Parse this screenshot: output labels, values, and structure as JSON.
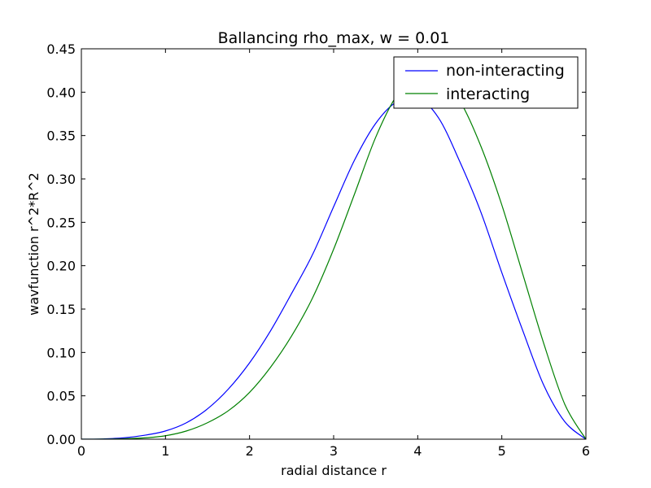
{
  "chart_data": {
    "type": "line",
    "title": "Ballancing rho_max, w = 0.01",
    "xlabel": "radial distance r",
    "ylabel": "wavfunction r^2*R^2",
    "xlim": [
      0,
      6
    ],
    "ylim": [
      0,
      0.45
    ],
    "xticks": [
      0,
      1,
      2,
      3,
      4,
      5,
      6
    ],
    "xtick_labels": [
      "0",
      "1",
      "2",
      "3",
      "4",
      "5",
      "6"
    ],
    "yticks": [
      0.0,
      0.05,
      0.1,
      0.15,
      0.2,
      0.25,
      0.3,
      0.35,
      0.4,
      0.45
    ],
    "ytick_labels": [
      "0.00",
      "0.05",
      "0.10",
      "0.15",
      "0.20",
      "0.25",
      "0.30",
      "0.35",
      "0.40",
      "0.45"
    ],
    "grid": false,
    "legend_position": "top-right",
    "series": [
      {
        "name": "non-interacting",
        "color": "#0000ff",
        "x": [
          0,
          0.25,
          0.5,
          0.75,
          1.0,
          1.25,
          1.5,
          1.75,
          2.0,
          2.25,
          2.5,
          2.75,
          3.0,
          3.25,
          3.5,
          3.75,
          4.0,
          4.25,
          4.5,
          4.75,
          5.0,
          5.25,
          5.5,
          5.75,
          6.0
        ],
        "y": [
          0.0,
          0.0003,
          0.0015,
          0.0045,
          0.0095,
          0.019,
          0.035,
          0.058,
          0.088,
          0.125,
          0.168,
          0.213,
          0.268,
          0.322,
          0.364,
          0.389,
          0.394,
          0.37,
          0.32,
          0.262,
          0.192,
          0.125,
          0.062,
          0.02,
          0.0
        ]
      },
      {
        "name": "interacting",
        "color": "#008000",
        "x": [
          0,
          0.25,
          0.5,
          0.75,
          1.0,
          1.25,
          1.5,
          1.75,
          2.0,
          2.25,
          2.5,
          2.75,
          3.0,
          3.25,
          3.5,
          3.75,
          4.0,
          4.25,
          4.5,
          4.75,
          5.0,
          5.25,
          5.5,
          5.75,
          6.0
        ],
        "y": [
          0.0,
          0.0001,
          0.0005,
          0.0015,
          0.004,
          0.0095,
          0.019,
          0.033,
          0.054,
          0.083,
          0.119,
          0.163,
          0.219,
          0.283,
          0.348,
          0.396,
          0.418,
          0.415,
          0.39,
          0.338,
          0.27,
          0.19,
          0.11,
          0.04,
          0.0
        ]
      }
    ]
  }
}
